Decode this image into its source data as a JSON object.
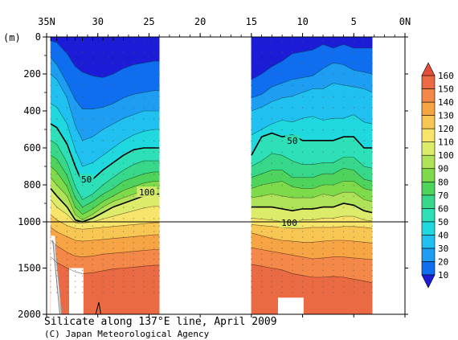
{
  "chart_data": {
    "type": "heatmap",
    "title": "Silicate along 137°E line, April 2009",
    "credit": "(C) Japan Meteorological Agency",
    "x_axis": {
      "ticks": [
        {
          "value": 35,
          "label": "35N"
        },
        {
          "value": 30,
          "label": "30"
        },
        {
          "value": 25,
          "label": "25"
        },
        {
          "value": 20,
          "label": "20"
        },
        {
          "value": 15,
          "label": "15"
        },
        {
          "value": 10,
          "label": "10"
        },
        {
          "value": 5,
          "label": "5"
        },
        {
          "value": 0,
          "label": "0N"
        }
      ],
      "range": [
        35,
        0
      ]
    },
    "y_axis": {
      "unit_label": "(m)",
      "ticks": [
        0,
        200,
        400,
        600,
        800,
        1000,
        1500,
        2000
      ],
      "scale": "linear 0–1000 m, compressed 1000–2000 m",
      "range": [
        0,
        2000
      ]
    },
    "colorbar": {
      "levels": [
        10,
        20,
        30,
        40,
        50,
        60,
        70,
        80,
        90,
        100,
        110,
        120,
        130,
        140,
        150,
        160
      ],
      "colors": [
        "#1c1cd6",
        "#0f6df0",
        "#1e9ef2",
        "#20c0f0",
        "#1fd8e0",
        "#2ee0b8",
        "#37d88a",
        "#4ed45c",
        "#7dda4a",
        "#aee258",
        "#dcec6a",
        "#f7e46a",
        "#f8c652",
        "#f7a444",
        "#f38848",
        "#ea6a44",
        "#e24e3a"
      ],
      "extend": "both"
    },
    "contour_labels": [
      {
        "text": "50",
        "lat": 31.1,
        "depth": 770
      },
      {
        "text": "100",
        "lat": 25.2,
        "depth": 840
      },
      {
        "text": "50",
        "lat": 11.0,
        "depth": 560
      },
      {
        "text": "100",
        "lat": 11.3,
        "depth": 1010
      }
    ],
    "sections": [
      {
        "name": "north",
        "lat_start": 34.6,
        "lat_end": 24.0
      },
      {
        "name": "south",
        "lat_start": 15.0,
        "lat_end": 3.2
      }
    ],
    "isolines": {
      "north_lat": [
        34.6,
        34.0,
        33.0,
        32.2,
        31.5,
        30.5,
        29.5,
        28.5,
        27.5,
        26.5,
        25.5,
        24.5,
        24.0
      ],
      "south_lat": [
        15.0,
        14.0,
        13.0,
        12.0,
        11.0,
        10.0,
        9.0,
        8.0,
        7.0,
        6.0,
        5.0,
        4.0,
        3.2
      ],
      "levels": [
        {
          "value": 10,
          "north": [
            20,
            30,
            90,
            160,
            190,
            210,
            220,
            200,
            170,
            150,
            140,
            130,
            130
          ],
          "south": [
            230,
            200,
            160,
            130,
            90,
            80,
            70,
            40,
            60,
            40,
            60,
            60,
            60
          ]
        },
        {
          "value": 20,
          "north": [
            110,
            150,
            250,
            340,
            390,
            390,
            380,
            360,
            330,
            310,
            300,
            290,
            290
          ],
          "south": [
            330,
            310,
            270,
            250,
            230,
            220,
            210,
            170,
            140,
            150,
            180,
            190,
            200
          ]
        },
        {
          "value": 30,
          "north": [
            200,
            230,
            330,
            480,
            560,
            540,
            500,
            470,
            440,
            420,
            400,
            400,
            400
          ],
          "south": [
            400,
            380,
            350,
            330,
            320,
            300,
            280,
            280,
            250,
            260,
            270,
            280,
            300
          ]
        },
        {
          "value": 40,
          "north": [
            360,
            380,
            470,
            610,
            700,
            680,
            640,
            600,
            560,
            530,
            510,
            500,
            500
          ],
          "south": [
            530,
            500,
            470,
            450,
            460,
            440,
            430,
            450,
            440,
            440,
            420,
            460,
            470
          ]
        },
        {
          "value": 50,
          "north": [
            470,
            490,
            580,
            700,
            790,
            770,
            720,
            680,
            640,
            610,
            600,
            600,
            600
          ],
          "south": [
            640,
            540,
            520,
            540,
            530,
            560,
            560,
            560,
            560,
            540,
            540,
            600,
            600
          ]
        },
        {
          "value": 60,
          "north": [
            560,
            580,
            680,
            810,
            880,
            850,
            800,
            760,
            720,
            690,
            670,
            670,
            670
          ],
          "south": [
            700,
            670,
            630,
            640,
            670,
            690,
            690,
            680,
            680,
            650,
            650,
            700,
            710
          ]
        },
        {
          "value": 70,
          "north": [
            640,
            660,
            750,
            870,
            920,
            890,
            850,
            820,
            780,
            760,
            740,
            730,
            730
          ],
          "south": [
            760,
            740,
            720,
            720,
            760,
            760,
            760,
            740,
            740,
            710,
            720,
            770,
            780
          ]
        },
        {
          "value": 80,
          "north": [
            700,
            730,
            810,
            920,
            960,
            930,
            890,
            860,
            830,
            810,
            790,
            780,
            780
          ],
          "south": [
            820,
            800,
            790,
            780,
            810,
            820,
            820,
            800,
            800,
            780,
            780,
            820,
            830
          ]
        },
        {
          "value": 90,
          "north": [
            760,
            800,
            860,
            960,
            990,
            960,
            920,
            890,
            870,
            850,
            830,
            820,
            820
          ],
          "south": [
            870,
            860,
            850,
            860,
            870,
            870,
            870,
            850,
            860,
            840,
            840,
            880,
            890
          ]
        },
        {
          "value": 100,
          "north": [
            820,
            860,
            920,
            990,
            1000,
            980,
            950,
            920,
            900,
            880,
            860,
            850,
            850
          ],
          "south": [
            920,
            920,
            920,
            930,
            940,
            930,
            930,
            920,
            920,
            900,
            910,
            940,
            950
          ]
        },
        {
          "value": 110,
          "north": [
            880,
            920,
            960,
            1010,
            1015,
            1000,
            985,
            970,
            955,
            940,
            925,
            915,
            915
          ],
          "south": [
            980,
            985,
            990,
            1000,
            1000,
            990,
            990,
            980,
            980,
            970,
            970,
            990,
            995
          ]
        },
        {
          "value": 120,
          "north": [
            960,
            990,
            1040,
            1070,
            1080,
            1070,
            1060,
            1050,
            1040,
            1030,
            1020,
            1010,
            1010
          ],
          "south": [
            1030,
            1040,
            1050,
            1060,
            1070,
            1070,
            1060,
            1060,
            1060,
            1050,
            1050,
            1060,
            1070
          ]
        },
        {
          "value": 130,
          "north": [
            1060,
            1110,
            1160,
            1200,
            1210,
            1200,
            1190,
            1180,
            1170,
            1160,
            1150,
            1140,
            1140
          ],
          "south": [
            1120,
            1150,
            1180,
            1200,
            1210,
            1220,
            1220,
            1210,
            1200,
            1200,
            1210,
            1220,
            1230
          ]
        },
        {
          "value": 140,
          "north": [
            1200,
            1260,
            1330,
            1370,
            1380,
            1370,
            1350,
            1340,
            1330,
            1320,
            1310,
            1300,
            1300
          ],
          "south": [
            1280,
            1300,
            1320,
            1340,
            1360,
            1380,
            1400,
            1390,
            1380,
            1380,
            1390,
            1400,
            1410
          ]
        },
        {
          "value": 150,
          "north": [
            1380,
            1440,
            1500,
            1540,
            1560,
            1550,
            1530,
            1510,
            1500,
            1490,
            1480,
            1470,
            1470
          ],
          "south": [
            1460,
            1480,
            1500,
            1520,
            1560,
            1580,
            1600,
            1600,
            1590,
            1600,
            1620,
            1640,
            1660
          ]
        }
      ]
    }
  }
}
